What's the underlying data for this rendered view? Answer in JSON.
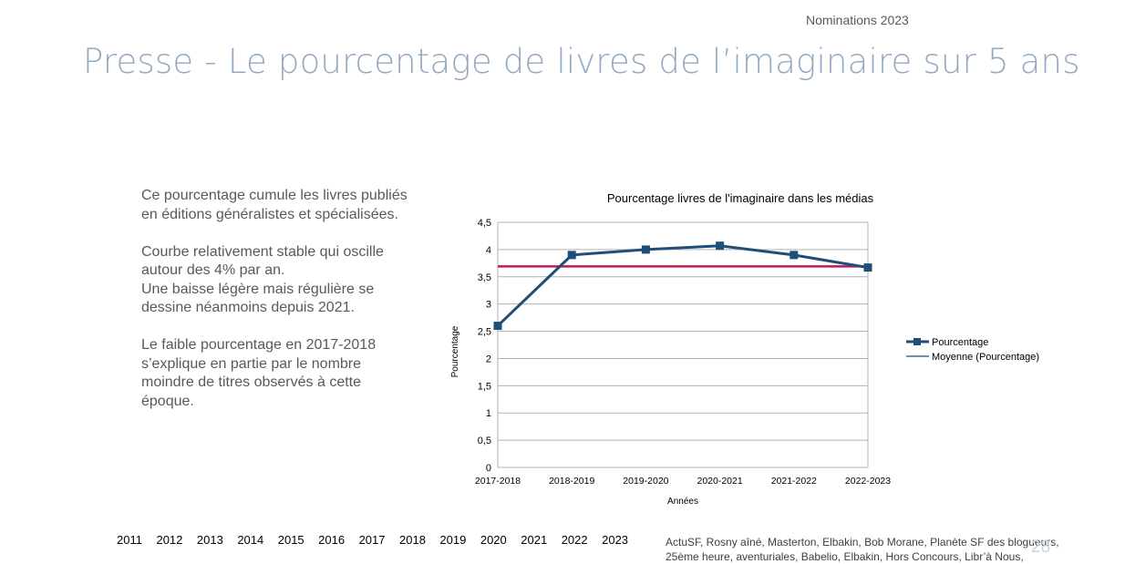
{
  "header": {
    "nominations": "Nominations 2023"
  },
  "title": "Presse - Le pourcentage de livres de l’imaginaire sur 5 ans",
  "text": {
    "p1": "Ce pourcentage cumule les livres publiés en éditions généralistes et spécialisées.",
    "p2a": "Courbe relativement stable qui oscille autour des 4% par an.",
    "p2b": "Une baisse légère mais régulière se dessine néanmoins depuis 2021.",
    "p3": "Le faible pourcentage en 2017-2018 s’explique en partie par le nombre moindre de titres observés à cette époque."
  },
  "chart_data": {
    "type": "line",
    "title": "Pourcentage livres de l'imaginaire dans les médias",
    "xlabel": "Années",
    "ylabel": "Pourcentage",
    "categories": [
      "2017-2018",
      "2018-2019",
      "2019-2020",
      "2020-2021",
      "2021-2022",
      "2022-2023"
    ],
    "ylim": [
      0,
      4.5
    ],
    "yticks": [
      "0",
      "0,5",
      "1",
      "1,5",
      "2",
      "2,5",
      "3",
      "3,5",
      "4",
      "4,5"
    ],
    "grid": true,
    "legend_position": "right",
    "series": [
      {
        "name": "Pourcentage",
        "values": [
          2.6,
          3.9,
          4.0,
          4.07,
          3.9,
          3.67
        ],
        "color": "#1f4e79",
        "marker": "square"
      },
      {
        "name": "Moyenne (Pourcentage)",
        "values": [
          3.69,
          3.69,
          3.69,
          3.69,
          3.69,
          3.69
        ],
        "color": "#c2185b",
        "legend_color": "#1f4e79"
      }
    ]
  },
  "years": [
    "2011",
    "2012",
    "2013",
    "2014",
    "2015",
    "2016",
    "2017",
    "2018",
    "2019",
    "2020",
    "2021",
    "2022",
    "2023"
  ],
  "sources": {
    "line1": "ActuSF, Rosny aîné, Masterton, Elbakin, Bob Morane, Planète SF des blogueurs,",
    "line2": "25ème heure, aventuriales, Babelio, Elbakin, Hors Concours,  Libr’à Nous,"
  },
  "page_number": "28"
}
